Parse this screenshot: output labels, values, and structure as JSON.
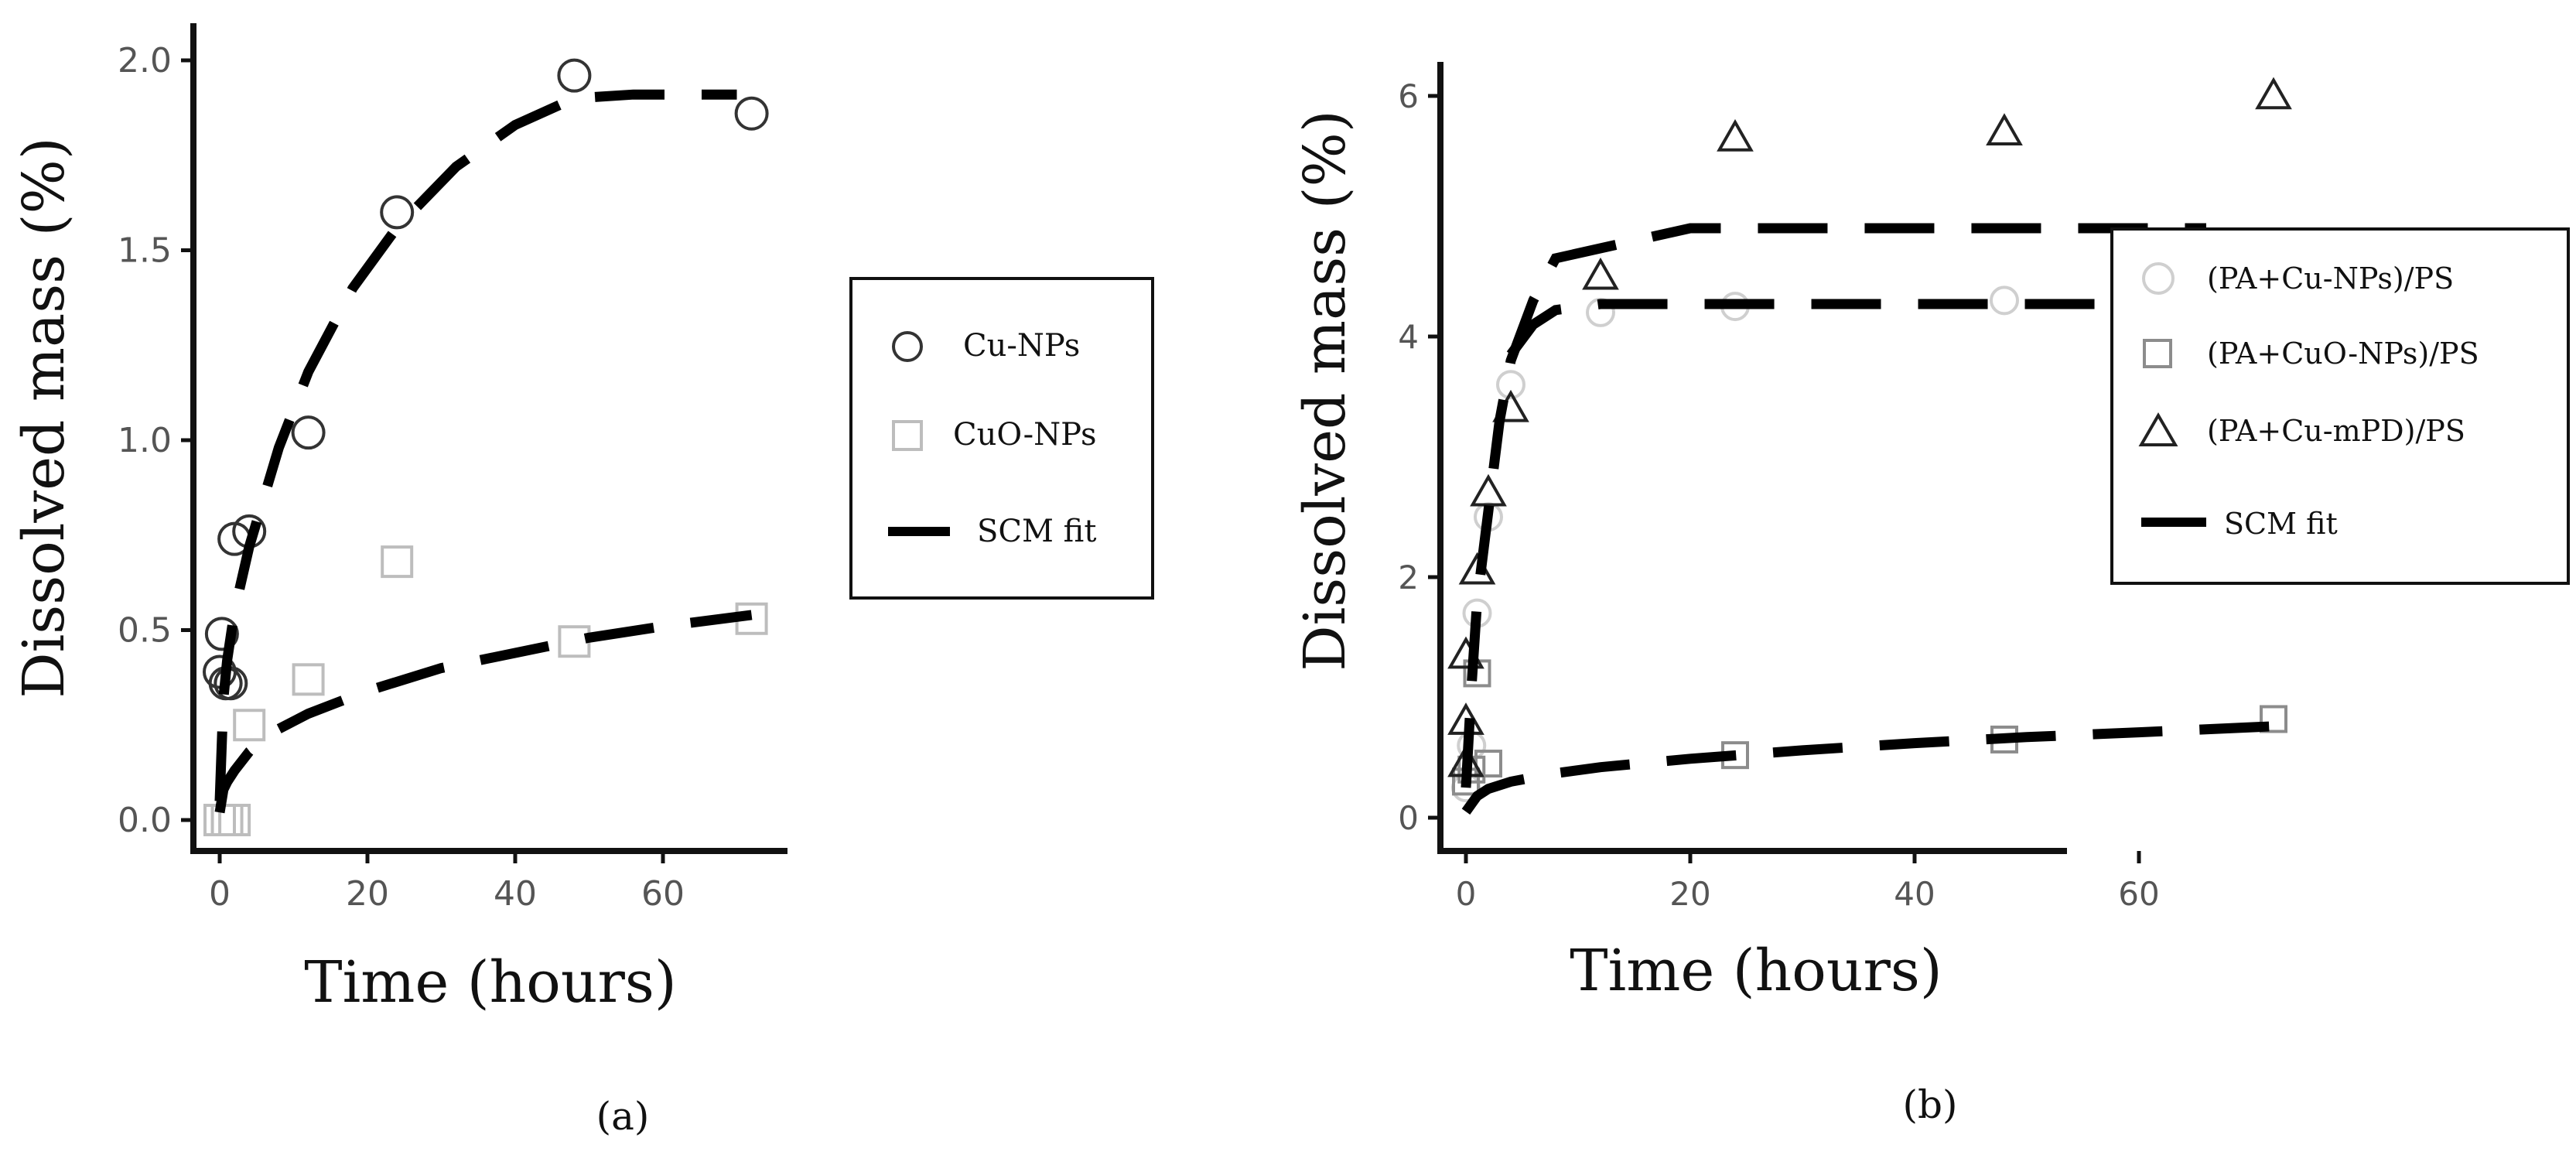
{
  "colors": {
    "axis": "#111111",
    "fit": "#000000",
    "cu_marker": "#333333",
    "cuo_marker": "#bdbdbd",
    "pa_cu_np": "#cfcfcf",
    "pa_cuo_np": "#8c8c8c",
    "pa_cu_mpd": "#222222",
    "tick_text": "#555555"
  },
  "chart_data": [
    {
      "type": "scatter",
      "panel_label": "(a)",
      "xlabel": "Time (hours)",
      "ylabel": "Dissolved mass (%)",
      "xlim": [
        -4,
        76
      ],
      "ylim": [
        -0.09,
        2.09
      ],
      "xticks": [
        "0",
        "20",
        "40",
        "60"
      ],
      "yticks": [
        "0.0",
        "0.5",
        "1.0",
        "1.5",
        "2.0"
      ],
      "grid": false,
      "legend_position": "right",
      "series": [
        {
          "name": "Cu-NPs",
          "marker": "circle",
          "points": [
            [
              0.3,
              0.49
            ],
            [
              0,
              0.39
            ],
            [
              0.8,
              0.36
            ],
            [
              1.5,
              0.36
            ],
            [
              2,
              0.74
            ],
            [
              4,
              0.76
            ],
            [
              12,
              1.02
            ],
            [
              24,
              1.6
            ],
            [
              48,
              1.96
            ],
            [
              72,
              1.86
            ]
          ]
        },
        {
          "name": "CuO-NPs",
          "marker": "square",
          "points": [
            [
              0,
              0.0
            ],
            [
              1,
              0.0
            ],
            [
              2,
              0.0
            ],
            [
              4,
              0.25
            ],
            [
              12,
              0.37
            ],
            [
              24,
              0.68
            ],
            [
              48,
              0.47
            ],
            [
              72,
              0.53
            ]
          ]
        },
        {
          "name": "SCM fit",
          "marker": "dashed-line",
          "curves": [
            [
              [
                0,
                0.05
              ],
              [
                0.5,
                0.32
              ],
              [
                1,
                0.42
              ],
              [
                2,
                0.55
              ],
              [
                4,
                0.72
              ],
              [
                8,
                0.98
              ],
              [
                12,
                1.18
              ],
              [
                18,
                1.4
              ],
              [
                24,
                1.56
              ],
              [
                32,
                1.72
              ],
              [
                40,
                1.83
              ],
              [
                48,
                1.9
              ],
              [
                56,
                1.91
              ],
              [
                64,
                1.91
              ],
              [
                70,
                1.91
              ]
            ],
            [
              [
                0,
                0.02
              ],
              [
                0.5,
                0.08
              ],
              [
                1,
                0.1
              ],
              [
                2,
                0.13
              ],
              [
                4,
                0.18
              ],
              [
                8,
                0.24
              ],
              [
                12,
                0.28
              ],
              [
                20,
                0.34
              ],
              [
                30,
                0.4
              ],
              [
                40,
                0.44
              ],
              [
                50,
                0.48
              ],
              [
                60,
                0.51
              ],
              [
                72,
                0.54
              ]
            ]
          ]
        }
      ]
    },
    {
      "type": "scatter",
      "panel_label": "(b)",
      "xlabel": "Time (hours)",
      "ylabel": "Dissolved mass (%)",
      "xlim": [
        -4,
        76
      ],
      "ylim": [
        -0.3,
        6.3
      ],
      "xticks": [
        "0",
        "20",
        "40",
        "60"
      ],
      "yticks": [
        "0",
        "2",
        "4",
        "6"
      ],
      "grid": false,
      "legend_position": "right",
      "series": [
        {
          "name": "(PA+Cu-NPs)/PS",
          "marker": "circle",
          "points": [
            [
              0,
              0.25
            ],
            [
              0.5,
              0.6
            ],
            [
              1,
              1.7
            ],
            [
              2,
              2.5
            ],
            [
              4,
              3.6
            ],
            [
              12,
              4.2
            ],
            [
              24,
              4.25
            ],
            [
              48,
              4.3
            ],
            [
              72,
              4.3
            ]
          ]
        },
        {
          "name": "(PA+CuO-NPs)/PS",
          "marker": "square",
          "points": [
            [
              0,
              0.3
            ],
            [
              0.5,
              0.4
            ],
            [
              1,
              1.2
            ],
            [
              2,
              0.45
            ],
            [
              24,
              0.52
            ],
            [
              48,
              0.65
            ],
            [
              72,
              0.82
            ]
          ]
        },
        {
          "name": "(PA+Cu-mPD)/PS",
          "marker": "triangle",
          "points": [
            [
              0,
              0.45
            ],
            [
              0,
              0.8
            ],
            [
              0,
              1.35
            ],
            [
              1,
              2.05
            ],
            [
              2,
              2.7
            ],
            [
              4,
              3.4
            ],
            [
              12,
              4.5
            ],
            [
              24,
              5.65
            ],
            [
              48,
              5.7
            ],
            [
              72,
              6.0
            ]
          ]
        },
        {
          "name": "SCM fit",
          "marker": "dashed-line",
          "curves": [
            [
              [
                0,
                0.25
              ],
              [
                0.5,
                1.1
              ],
              [
                1,
                1.8
              ],
              [
                2,
                2.55
              ],
              [
                3,
                3.3
              ],
              [
                4,
                3.8
              ],
              [
                6,
                4.3
              ],
              [
                8,
                4.65
              ],
              [
                20,
                4.9
              ],
              [
                36,
                4.9
              ],
              [
                50,
                4.9
              ],
              [
                66,
                4.9
              ]
            ],
            [
              [
                4,
                3.85
              ],
              [
                6,
                4.1
              ],
              [
                8,
                4.22
              ],
              [
                12,
                4.27
              ],
              [
                20,
                4.27
              ],
              [
                40,
                4.27
              ],
              [
                60,
                4.27
              ],
              [
                72,
                4.27
              ]
            ],
            [
              [
                0,
                0.05
              ],
              [
                1,
                0.18
              ],
              [
                2,
                0.24
              ],
              [
                4,
                0.3
              ],
              [
                8,
                0.37
              ],
              [
                12,
                0.42
              ],
              [
                20,
                0.49
              ],
              [
                30,
                0.56
              ],
              [
                40,
                0.62
              ],
              [
                50,
                0.67
              ],
              [
                60,
                0.71
              ],
              [
                72,
                0.76
              ]
            ]
          ]
        }
      ]
    }
  ]
}
